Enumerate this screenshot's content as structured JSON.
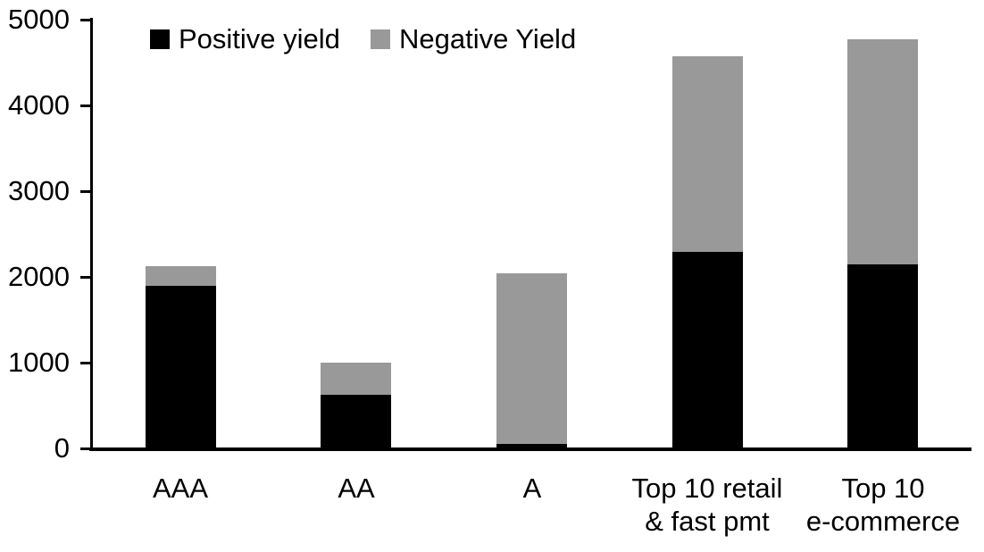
{
  "chart_data": {
    "type": "bar",
    "stacked": true,
    "title": "",
    "xlabel": "",
    "ylabel": "",
    "background": "#ffffff",
    "axis_color": "#000000",
    "grid": false,
    "legend_position": "top-left",
    "ylim": [
      0,
      5000
    ],
    "yticks": [
      0,
      1000,
      2000,
      3000,
      4000,
      5000
    ],
    "categories": [
      {
        "lines": [
          "AAA"
        ]
      },
      {
        "lines": [
          "AA"
        ]
      },
      {
        "lines": [
          "A"
        ]
      },
      {
        "lines": [
          "Top 10 retail",
          "& fast pmt"
        ]
      },
      {
        "lines": [
          "Top 10",
          "e-commerce"
        ]
      }
    ],
    "series": [
      {
        "name": "Positive yield",
        "color": "#000000",
        "values": [
          1900,
          620,
          50,
          2290,
          2150
        ]
      },
      {
        "name": "Negative Yield",
        "color": "#999999",
        "values": [
          220,
          380,
          1990,
          2280,
          2620
        ]
      }
    ],
    "totals": [
      2120,
      1000,
      2040,
      4570,
      4770
    ]
  }
}
